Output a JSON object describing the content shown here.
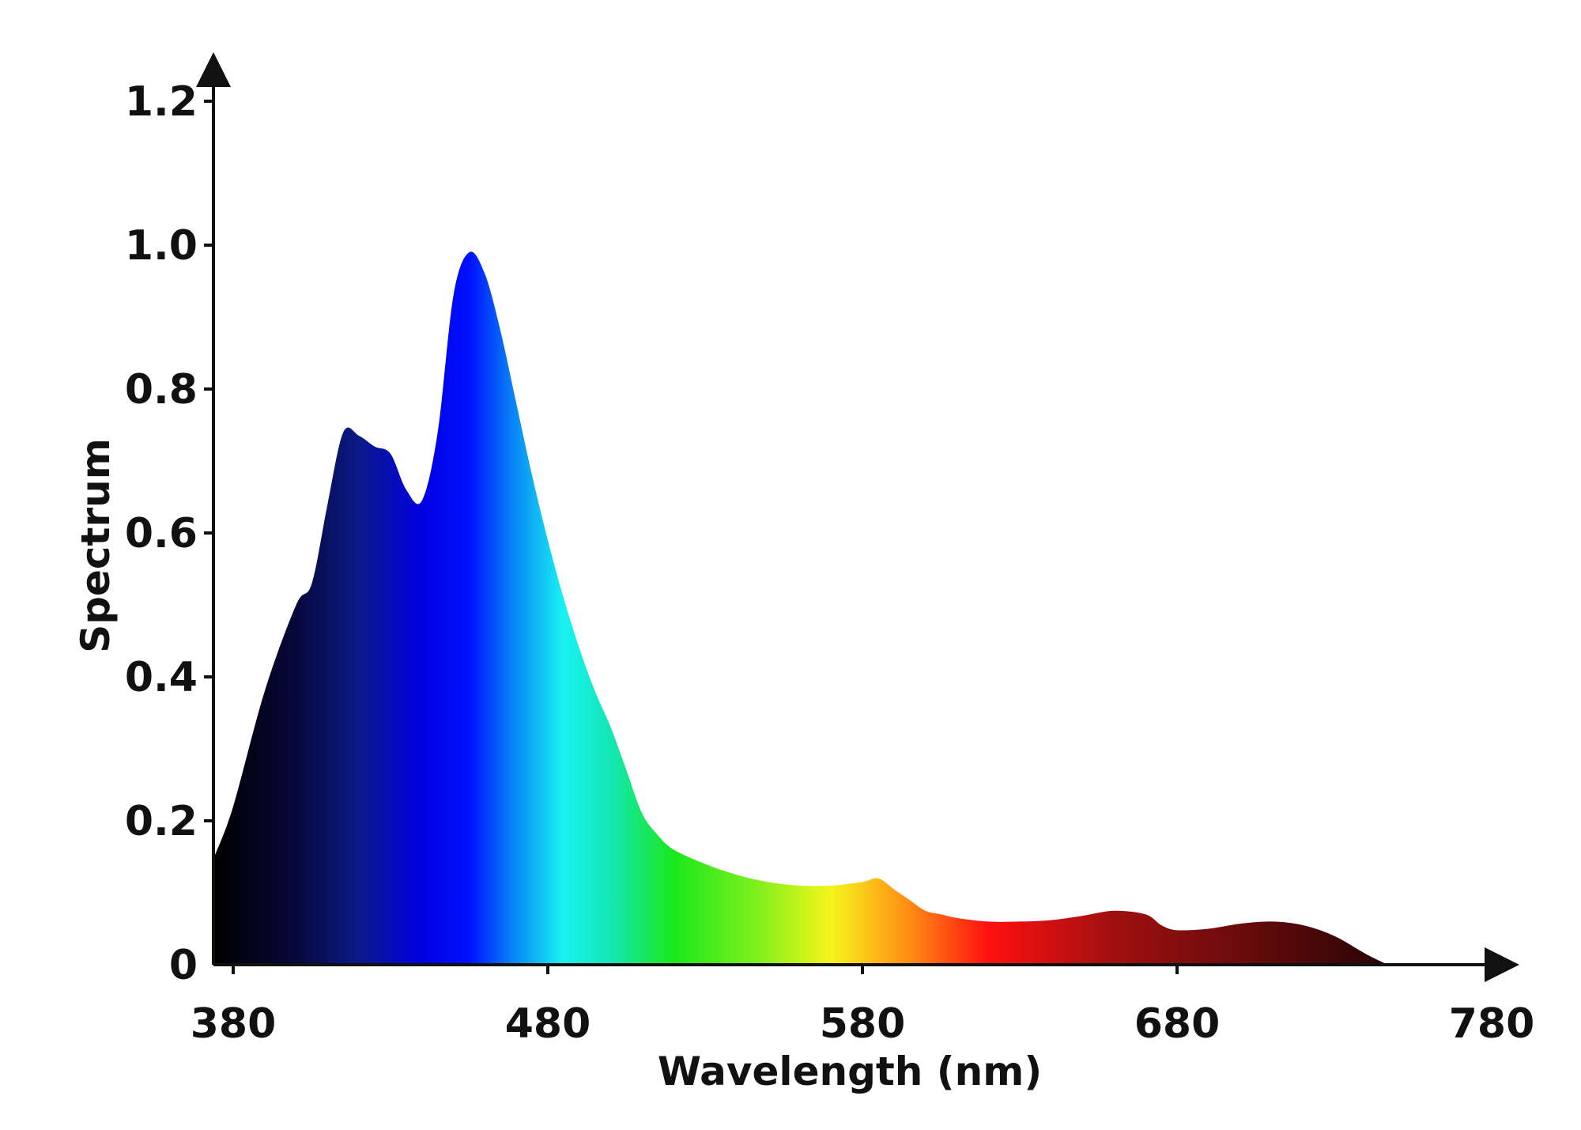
{
  "chart_data": {
    "type": "area",
    "title": "",
    "xlabel": "Wavelength (nm)",
    "ylabel": "Spectrum",
    "xlim": [
      380,
      780
    ],
    "ylim": [
      0,
      1.2
    ],
    "x_ticks": [
      380,
      480,
      580,
      680,
      780
    ],
    "x_tick_labels": [
      "380",
      "480",
      "580",
      "680",
      "780"
    ],
    "y_ticks": [
      0,
      0.2,
      0.4,
      0.6,
      0.8,
      1.0,
      1.2
    ],
    "y_tick_labels": [
      "0",
      "0.2",
      "0.4",
      "0.6",
      "0.8",
      "1.0",
      "1.2"
    ],
    "grid": false,
    "legend": "none",
    "fill": "visible-spectrum gradient",
    "x": [
      374,
      380,
      390,
      400,
      405,
      410,
      415,
      420,
      425,
      430,
      435,
      440,
      445,
      450,
      455,
      460,
      465,
      470,
      475,
      480,
      485,
      490,
      495,
      500,
      505,
      510,
      515,
      520,
      530,
      540,
      550,
      560,
      570,
      580,
      585,
      590,
      595,
      600,
      605,
      610,
      620,
      630,
      640,
      650,
      660,
      670,
      675,
      680,
      690,
      700,
      710,
      720,
      730,
      740,
      747
    ],
    "values": [
      0.15,
      0.22,
      0.38,
      0.5,
      0.53,
      0.64,
      0.74,
      0.735,
      0.72,
      0.71,
      0.66,
      0.645,
      0.74,
      0.93,
      0.99,
      0.96,
      0.88,
      0.78,
      0.68,
      0.59,
      0.51,
      0.44,
      0.38,
      0.33,
      0.27,
      0.21,
      0.18,
      0.16,
      0.14,
      0.125,
      0.115,
      0.11,
      0.11,
      0.115,
      0.12,
      0.105,
      0.09,
      0.075,
      0.07,
      0.065,
      0.06,
      0.06,
      0.062,
      0.068,
      0.075,
      0.07,
      0.055,
      0.048,
      0.05,
      0.057,
      0.06,
      0.055,
      0.04,
      0.015,
      0.0
    ]
  },
  "colors": {
    "axis": "#111111",
    "spectrum_stops": [
      {
        "nm": 374,
        "color": "#000000"
      },
      {
        "nm": 400,
        "color": "#06083a"
      },
      {
        "nm": 420,
        "color": "#0b1a8a"
      },
      {
        "nm": 440,
        "color": "#0000e0"
      },
      {
        "nm": 455,
        "color": "#0010ff"
      },
      {
        "nm": 470,
        "color": "#0a8cf5"
      },
      {
        "nm": 485,
        "color": "#18f2f2"
      },
      {
        "nm": 500,
        "color": "#14e6b4"
      },
      {
        "nm": 520,
        "color": "#1be81b"
      },
      {
        "nm": 545,
        "color": "#78f01c"
      },
      {
        "nm": 570,
        "color": "#f5f51c"
      },
      {
        "nm": 595,
        "color": "#ff8c14"
      },
      {
        "nm": 620,
        "color": "#ff1010"
      },
      {
        "nm": 660,
        "color": "#a01010"
      },
      {
        "nm": 700,
        "color": "#6a0b0b"
      },
      {
        "nm": 745,
        "color": "#2a0505"
      }
    ]
  }
}
